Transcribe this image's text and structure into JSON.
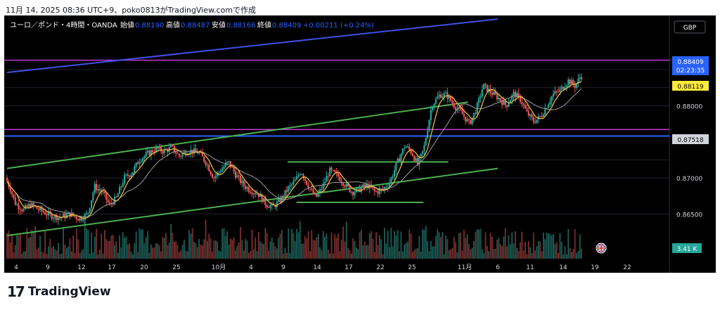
{
  "caption": "11月 14, 2025 08:36 UTC+9、poko0813がTradingView.comで作成",
  "brand": {
    "logo": "17",
    "name": "TradingView"
  },
  "header": {
    "symbol": "ユーロ／ポンド・4時間・OANDA",
    "items": [
      {
        "label": "始値",
        "value": "0.88190"
      },
      {
        "label": "高値",
        "value": "0.88487"
      },
      {
        "label": "安値",
        "value": "0.88166"
      },
      {
        "label": "終値",
        "value": "0.88409"
      }
    ],
    "change": "+0.00211 (+0.24%)",
    "currency": "GBP"
  },
  "colors": {
    "up": "#26a69a",
    "down": "#ef5350",
    "fast_ma": "#f5c542",
    "slow_ma": "#9e9e9e",
    "channel": "#4caf50",
    "resistance": "#c03bd6",
    "support": "#2962ff",
    "blue_trend": "#3f51e8",
    "header_values": "#2962ff",
    "last_price_tag": "#2962ff",
    "ma_tag": "#ffeb3b",
    "slow_tag": "#d1d4dc"
  },
  "chart_data": {
    "type": "candlestick",
    "y_axis": {
      "ticks": [
        "0.88500",
        "0.88000",
        "0.87000",
        "0.86500"
      ],
      "range": [
        0.8588,
        0.8925
      ]
    },
    "x_axis": {
      "labels": [
        "4",
        "9",
        "12",
        "17",
        "20",
        "25",
        "10月",
        "4",
        "9",
        "14",
        "17",
        "22",
        "25",
        "11月",
        "6",
        "11",
        "14",
        "19",
        "22"
      ],
      "range_days": [
        0,
        56
      ]
    },
    "last_price": {
      "value": "0.88409",
      "countdown": "02:23:35"
    },
    "ma_fast_value": "0.88119",
    "ma_slow_value": "0.87518",
    "volume_label": "3.41 K",
    "horizontal_lines": [
      {
        "name": "resistance-upper",
        "price": 0.8863
      },
      {
        "name": "resistance-lower",
        "price": 0.8767
      },
      {
        "name": "support-blue",
        "price": 0.8758
      }
    ],
    "trend_lines": [
      {
        "name": "blue-trend",
        "from": [
          0,
          0.8846
        ],
        "to": [
          49.5,
          0.892
        ]
      },
      {
        "name": "channel-upper",
        "from": [
          0,
          0.8713
        ],
        "to": [
          46.5,
          0.8805
        ]
      },
      {
        "name": "channel-lower",
        "from": [
          0,
          0.862
        ],
        "to": [
          49.5,
          0.8713
        ]
      },
      {
        "name": "range-high",
        "from": [
          28.3,
          0.8722
        ],
        "to": [
          44.5,
          0.8722
        ]
      },
      {
        "name": "range-low",
        "from": [
          29.2,
          0.8666
        ],
        "to": [
          42.0,
          0.8666
        ]
      }
    ],
    "close_path": [
      [
        0,
        0.87
      ],
      [
        0.5,
        0.8685
      ],
      [
        1,
        0.8665
      ],
      [
        1.8,
        0.8655
      ],
      [
        2.5,
        0.8663
      ],
      [
        3.5,
        0.8655
      ],
      [
        4.5,
        0.8648
      ],
      [
        5.5,
        0.8645
      ],
      [
        6.5,
        0.865
      ],
      [
        7.5,
        0.8643
      ],
      [
        8.3,
        0.865
      ],
      [
        9.0,
        0.8688
      ],
      [
        9.8,
        0.868
      ],
      [
        10.5,
        0.8662
      ],
      [
        11.2,
        0.8672
      ],
      [
        12.0,
        0.87
      ],
      [
        12.8,
        0.8708
      ],
      [
        13.5,
        0.8725
      ],
      [
        14.5,
        0.8735
      ],
      [
        15.3,
        0.874
      ],
      [
        16.0,
        0.8737
      ],
      [
        16.8,
        0.8742
      ],
      [
        17.5,
        0.873
      ],
      [
        18.5,
        0.8738
      ],
      [
        19.5,
        0.8735
      ],
      [
        20.3,
        0.872
      ],
      [
        21.0,
        0.87
      ],
      [
        21.8,
        0.8712
      ],
      [
        22.5,
        0.8722
      ],
      [
        23.2,
        0.8705
      ],
      [
        24.0,
        0.869
      ],
      [
        24.7,
        0.8683
      ],
      [
        25.5,
        0.8678
      ],
      [
        26.3,
        0.8663
      ],
      [
        27.0,
        0.866
      ],
      [
        27.8,
        0.867
      ],
      [
        28.5,
        0.8685
      ],
      [
        29.2,
        0.8695
      ],
      [
        29.8,
        0.871
      ],
      [
        30.5,
        0.869
      ],
      [
        31.3,
        0.8672
      ],
      [
        32.0,
        0.8688
      ],
      [
        32.7,
        0.871
      ],
      [
        33.5,
        0.8703
      ],
      [
        34.3,
        0.869
      ],
      [
        35.0,
        0.868
      ],
      [
        35.8,
        0.8685
      ],
      [
        36.5,
        0.869
      ],
      [
        37.3,
        0.868
      ],
      [
        38.0,
        0.8683
      ],
      [
        38.8,
        0.8695
      ],
      [
        39.5,
        0.872
      ],
      [
        40.3,
        0.8745
      ],
      [
        41.0,
        0.8735
      ],
      [
        41.6,
        0.8718
      ],
      [
        42.2,
        0.874
      ],
      [
        43.0,
        0.88
      ],
      [
        43.8,
        0.8815
      ],
      [
        44.5,
        0.8815
      ],
      [
        45.3,
        0.88
      ],
      [
        46.0,
        0.879
      ],
      [
        46.8,
        0.8775
      ],
      [
        47.5,
        0.8795
      ],
      [
        48.2,
        0.8828
      ],
      [
        49.0,
        0.8818
      ],
      [
        49.8,
        0.881
      ],
      [
        50.5,
        0.88
      ],
      [
        51.3,
        0.8817
      ],
      [
        52.0,
        0.8808
      ],
      [
        52.6,
        0.879
      ],
      [
        53.3,
        0.8778
      ],
      [
        54.0,
        0.8785
      ],
      [
        54.6,
        0.88
      ],
      [
        55.2,
        0.8815
      ],
      [
        56.0,
        0.8822
      ],
      [
        56.8,
        0.8835
      ],
      [
        57.5,
        0.8827
      ],
      [
        58.0,
        0.8841
      ]
    ]
  }
}
